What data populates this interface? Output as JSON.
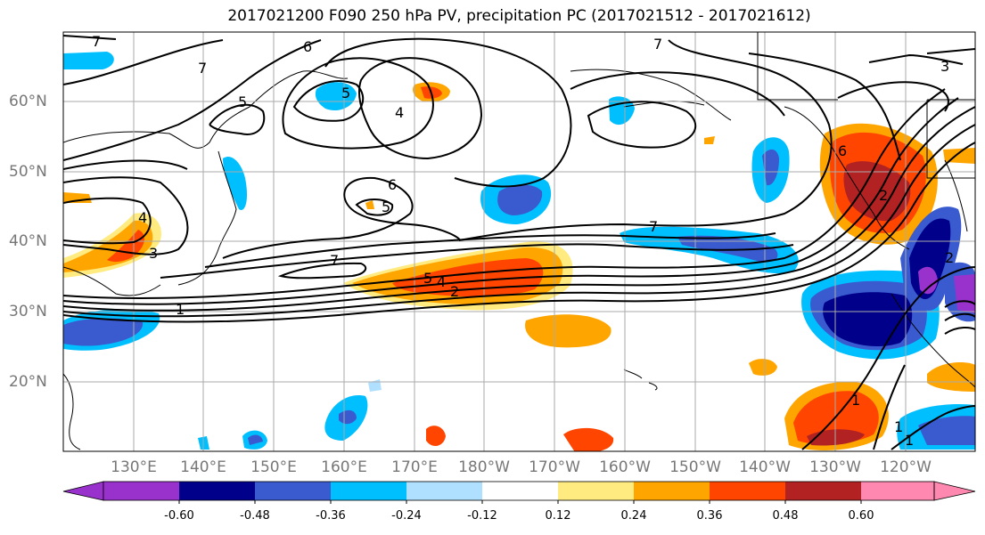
{
  "title": "2017021200 F090 250 hPa PV, precipitation PC (2017021512 - 2017021612)",
  "lat_labels": [
    "60°N",
    "50°N",
    "40°N",
    "30°N",
    "20°N"
  ],
  "lon_labels": [
    "130°E",
    "140°E",
    "150°E",
    "160°E",
    "170°E",
    "180°W",
    "170°W",
    "160°W",
    "150°W",
    "140°W",
    "130°W",
    "120°W"
  ],
  "colorbar": {
    "ticks": [
      "-0.60",
      "-0.48",
      "-0.36",
      "-0.24",
      "-0.12",
      "0.12",
      "0.24",
      "0.36",
      "0.48",
      "0.60"
    ],
    "colors": [
      "#9932CC",
      "#00008B",
      "#3A5BCF",
      "#00BFFF",
      "#B0E0FF",
      "#FFFFFF",
      "#FFEB80",
      "#FFA500",
      "#FF4500",
      "#B22222",
      "#FF88B0"
    ]
  },
  "contour_labels": [
    "7",
    "6",
    "7",
    "5",
    "4",
    "5",
    "6",
    "5",
    "7",
    "7",
    "1",
    "4",
    "3",
    "5",
    "4",
    "2",
    "2",
    "1",
    "6",
    "1",
    "1",
    "3",
    "2",
    "7"
  ]
}
